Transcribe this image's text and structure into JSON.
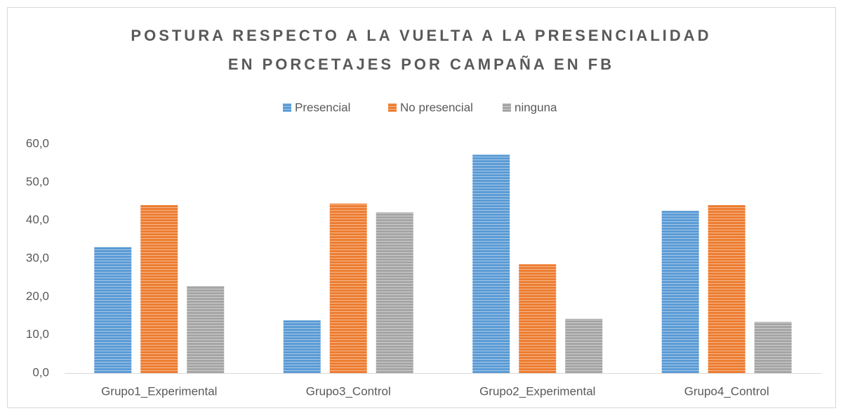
{
  "chart_data": {
    "type": "bar",
    "title": [
      "POSTURA RESPECTO A LA VUELTA A LA PRESENCIALIDAD",
      "EN PORCETAJES POR CAMPAÑA EN FB"
    ],
    "categories": [
      "Grupo1_Experimental",
      "Grupo3_Control",
      "Grupo2_Experimental",
      "Grupo4_Control"
    ],
    "series": [
      {
        "name": "Presencial",
        "color": "#5b9bd5",
        "values": [
          33.0,
          13.8,
          57.2,
          42.5
        ]
      },
      {
        "name": "No presencial",
        "color": "#ed7d31",
        "values": [
          44.0,
          44.4,
          28.5,
          44.0
        ]
      },
      {
        "name": "ninguna",
        "color": "#a5a5a5",
        "values": [
          22.8,
          42.1,
          14.2,
          13.4
        ]
      }
    ],
    "ylim": [
      0,
      60
    ],
    "yticks": [
      {
        "value": 0,
        "label": "0,0"
      },
      {
        "value": 10,
        "label": "10,0"
      },
      {
        "value": 20,
        "label": "20,0"
      },
      {
        "value": 30,
        "label": "30,0"
      },
      {
        "value": 40,
        "label": "40,0"
      },
      {
        "value": 50,
        "label": "50,0"
      },
      {
        "value": 60,
        "label": "60,0"
      }
    ],
    "grid": false,
    "legend": "top"
  }
}
